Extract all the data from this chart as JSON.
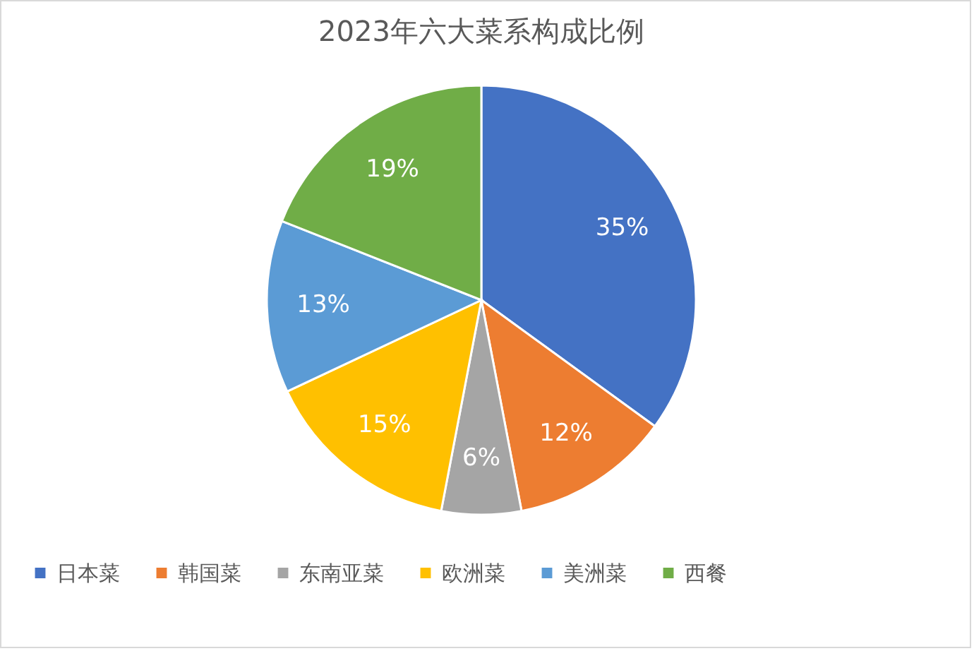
{
  "chart_data": {
    "type": "pie",
    "title": "2023年六大菜系构成比例",
    "categories": [
      "日本菜",
      "韩国菜",
      "东南亚菜",
      "欧洲菜",
      "美洲菜",
      "西餐"
    ],
    "values": [
      35,
      12,
      6,
      15,
      13,
      19
    ],
    "value_labels": [
      "35%",
      "12%",
      "6%",
      "15%",
      "13%",
      "19%"
    ],
    "colors": [
      "#4472c4",
      "#ed7d31",
      "#a5a5a5",
      "#ffc000",
      "#5b9bd5",
      "#70ad47"
    ],
    "legend": "bottom"
  }
}
